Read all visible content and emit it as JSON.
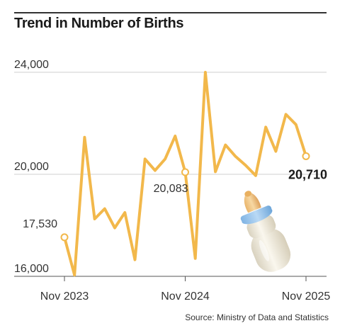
{
  "title": "Trend in Number of Births",
  "source": "Source: Ministry of Data and Statistics",
  "chart_data": {
    "type": "line",
    "title": "Trend in Number of Births",
    "xlabel": "",
    "ylabel": "",
    "ylim": [
      16000,
      24000
    ],
    "yticks": [
      24000,
      20000,
      16000
    ],
    "ytick_labels": [
      "24,000",
      "20,000",
      "16,000"
    ],
    "xtick_labels": [
      "Nov 2023",
      "Nov 2024",
      "Nov 2025"
    ],
    "grid": true,
    "line_color": "#f2b84b",
    "x": [
      "Nov 2023",
      "Dec 2023",
      "Jan 2024",
      "Feb 2024",
      "Mar 2024",
      "Apr 2024",
      "May 2024",
      "Jun 2024",
      "Jul 2024",
      "Aug 2024",
      "Sep 2024",
      "Oct 2024",
      "Nov 2024",
      "Dec 2024",
      "Jan 2025",
      "Feb 2025",
      "Mar 2025",
      "Apr 2025",
      "May 2025",
      "Jun 2025",
      "Jul 2025",
      "Aug 2025",
      "Sep 2025",
      "Oct 2025",
      "Nov 2025"
    ],
    "series": [
      {
        "values": [
          17530,
          16050,
          21450,
          18250,
          18650,
          17900,
          18500,
          16650,
          20600,
          20150,
          20600,
          21500,
          20083,
          16700,
          24000,
          20100,
          21150,
          20700,
          20350,
          19950,
          21850,
          20900,
          22350,
          21950,
          20710
        ]
      }
    ],
    "annotations": [
      {
        "index": 0,
        "label": "17,530",
        "bold": false
      },
      {
        "index": 12,
        "label": "20,083",
        "bold": false
      },
      {
        "index": 24,
        "label": "20,710",
        "bold": true
      }
    ]
  }
}
